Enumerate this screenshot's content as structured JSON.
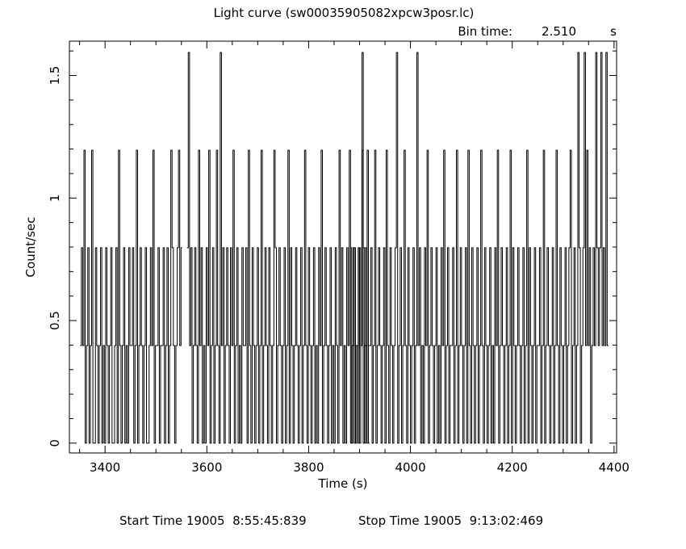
{
  "chart_data": {
    "type": "line",
    "title": "Light curve (sw00035905082xpcw3posr.lc)",
    "bin_time": {
      "label": "Bin time:",
      "value": "2.510",
      "unit": "s"
    },
    "xlabel": "Time (s)",
    "ylabel": "Count/sec",
    "xlim": [
      3330,
      4405
    ],
    "ylim": [
      -0.04,
      1.64
    ],
    "xticks": [
      3400,
      3600,
      3800,
      4000,
      4200,
      4400
    ],
    "xtick_labels": [
      "3400",
      "3600",
      "3800",
      "4000",
      "4200",
      "4400"
    ],
    "yticks": [
      0,
      0.5,
      1,
      1.5
    ],
    "ytick_labels": [
      "0",
      "0.5",
      "1",
      "1.5"
    ],
    "grid": false,
    "bin_width": 2.51,
    "levels": [
      0,
      0.398,
      0.797,
      1.195,
      1.594
    ],
    "segments": [
      {
        "start": 3351.0,
        "values": [
          0.398,
          0.797,
          0.398,
          1.195,
          0.0,
          0.398,
          0.797,
          0.0,
          0.398,
          1.195,
          0.0,
          0.0,
          0.797,
          0.398,
          0.0,
          0.398,
          0.797,
          0.0,
          0.398,
          0.0,
          0.797,
          0.398,
          0.0,
          0.398,
          0.797,
          0.0,
          0.0,
          0.398,
          0.797,
          0.0,
          1.195,
          0.398,
          0.0,
          0.398,
          0.797,
          0.0,
          0.398,
          0.0,
          0.797,
          0.398,
          0.398,
          0.797,
          0.0,
          0.398,
          1.195,
          0.0,
          0.398,
          0.797,
          0.398,
          0.0,
          0.398,
          0.797,
          0.0,
          0.0,
          0.398,
          0.797,
          0.398,
          1.195,
          0.0,
          0.398,
          0.398,
          0.797,
          0.0,
          0.398,
          0.398,
          0.797,
          0.0,
          0.398,
          0.797,
          0.0,
          0.398,
          1.195,
          0.797,
          0.398,
          0.0,
          0.398,
          0.797,
          1.195,
          0.398,
          0.797
        ]
      },
      {
        "start": 3561.0,
        "values": [
          0.797,
          1.594,
          0.398,
          0.797,
          0.0,
          0.398,
          0.797,
          0.398,
          0.0,
          1.195,
          0.398,
          0.797,
          0.0,
          0.398,
          0.0,
          0.797,
          0.398,
          1.195,
          0.0,
          0.398,
          0.797,
          0.0,
          0.398,
          1.195,
          0.398,
          0.0,
          1.594,
          0.398,
          0.797,
          0.0,
          0.398,
          0.797,
          0.398,
          0.0,
          0.797,
          0.398,
          1.195,
          0.0,
          0.398,
          0.797,
          0.0,
          0.398,
          0.0,
          0.797,
          0.398,
          0.398,
          0.797,
          0.0,
          1.195,
          0.398,
          0.0,
          0.797,
          0.398,
          0.0,
          0.398,
          0.797,
          0.0,
          0.398,
          1.195,
          0.0,
          0.398,
          0.797,
          0.398,
          0.0,
          0.797,
          0.398,
          0.0,
          0.398,
          1.195,
          0.797,
          0.0,
          0.398,
          0.797,
          0.398,
          0.0,
          0.398,
          0.797,
          0.0,
          0.398,
          1.195,
          0.0,
          0.797,
          0.398,
          0.0,
          0.398,
          0.797,
          0.398,
          0.0,
          0.398,
          0.797,
          0.0,
          0.398,
          1.195,
          0.398,
          0.0,
          0.797,
          0.398,
          0.0,
          0.398,
          0.797,
          0.0,
          0.398,
          0.0,
          0.797,
          0.398,
          1.195,
          0.0,
          0.398,
          0.797,
          0.398,
          0.0,
          0.398,
          0.797,
          0.0,
          0.398,
          0.0,
          0.797,
          0.398,
          0.0,
          1.195,
          0.398,
          0.797,
          0.0,
          0.398,
          0.0,
          0.797,
          0.398,
          1.195,
          0.0,
          0.398,
          0.797,
          0.0,
          0.398,
          0.398,
          0.797,
          0.0,
          0.398,
          1.594,
          0.797,
          0.0,
          0.398,
          1.195,
          0.0
        ]
      },
      {
        "start": 3882.0,
        "values": [
          0.797,
          0.0,
          0.398,
          0.797,
          0.0,
          0.398,
          0.0,
          0.797,
          0.398,
          1.195,
          0.0,
          0.398,
          0.797,
          0.0,
          0.398,
          0.398,
          0.797,
          0.0,
          0.398,
          1.195,
          0.0,
          0.398,
          0.797,
          0.398,
          0.0,
          0.398,
          0.797,
          0.0,
          1.195,
          0.398,
          0.0,
          0.797,
          0.398,
          0.0,
          0.398,
          0.797,
          1.594,
          0.0,
          0.398,
          0.797,
          0.0,
          0.398,
          1.195,
          0.398,
          0.0,
          0.797,
          0.398,
          0.0,
          0.398,
          0.797,
          0.0,
          0.398,
          1.594,
          0.398,
          0.797,
          0.0,
          0.398,
          0.0,
          0.797,
          0.398,
          1.195,
          0.0,
          0.398,
          0.797,
          0.398,
          0.0,
          0.398,
          0.797,
          0.0,
          0.398,
          0.0,
          0.797,
          0.398,
          1.195,
          0.0,
          0.398,
          0.797,
          0.0,
          0.398,
          0.398,
          0.797,
          0.0,
          0.398,
          1.195,
          0.0,
          0.398,
          0.797,
          0.398,
          0.0,
          0.398,
          0.797,
          0.0,
          1.195,
          0.398,
          0.0,
          0.797,
          0.398,
          0.0,
          0.398,
          0.797,
          0.0,
          0.398,
          1.195,
          0.398,
          0.0,
          0.797,
          0.398,
          0.0,
          0.398,
          0.797,
          0.0,
          0.398,
          0.0,
          0.797,
          0.398,
          1.195,
          0.0,
          0.398,
          0.797,
          0.398,
          0.0,
          0.398,
          0.797,
          0.0,
          0.398,
          1.195,
          0.0,
          0.797,
          0.398,
          0.0,
          0.398,
          0.797,
          0.398,
          0.0,
          0.398,
          0.797,
          0.0,
          0.398,
          1.195,
          0.0,
          0.797,
          0.398,
          0.0,
          0.398,
          0.797,
          0.0,
          0.398,
          0.398,
          0.797,
          0.0,
          0.398,
          1.195,
          0.0,
          0.398,
          0.797,
          0.398,
          0.0,
          0.398,
          0.797,
          0.0,
          0.398,
          1.195,
          0.398,
          0.0,
          0.797,
          0.398,
          0.0,
          0.398,
          0.797,
          0.0,
          0.398,
          0.797,
          1.195,
          0.0,
          0.398,
          0.797,
          0.0,
          0.398,
          1.594,
          0.797,
          0.0,
          0.398,
          0.797,
          1.594,
          0.398,
          1.195,
          0.398,
          0.797,
          0.0,
          0.398,
          0.797,
          0.398,
          1.594,
          0.797,
          0.398,
          0.797,
          1.594,
          0.398,
          0.797,
          0.398,
          1.594,
          0.398
        ]
      }
    ]
  },
  "footer": {
    "start_label": "Start Time 19005  8:55:45:839",
    "stop_label": "Stop Time 19005  9:13:02:469"
  }
}
